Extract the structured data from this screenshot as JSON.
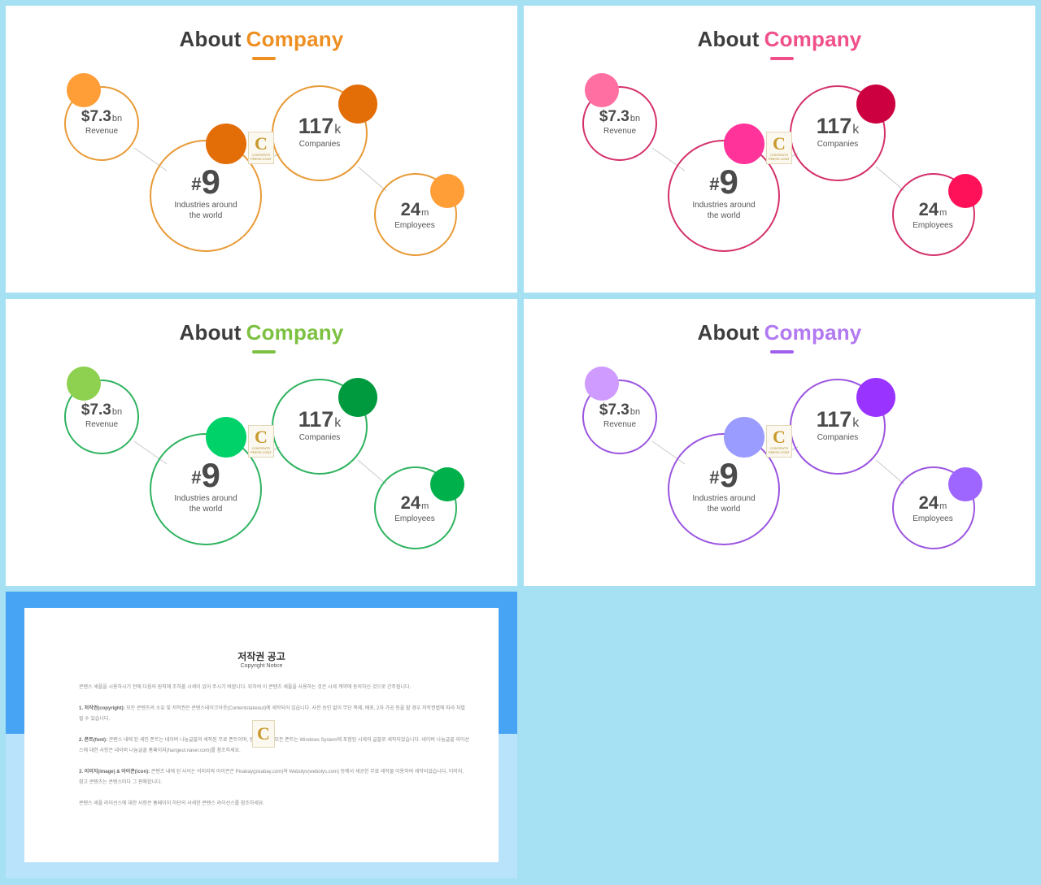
{
  "slides": [
    {
      "title_main": "About",
      "title_accent": "Company",
      "colors": {
        "accent": "#ee8f22",
        "ring": "#e89a36",
        "dot_small": "#ff9d37",
        "dot_large": "#e36d07",
        "underline": "#ee8f22",
        "link": "#c9c9c9"
      },
      "stats": {
        "revenue": {
          "value": "$7.3",
          "unit": "bn",
          "label": "Revenue"
        },
        "industries": {
          "prefix": "#",
          "value": "9",
          "label_line1": "Industries around",
          "label_line2": "the world"
        },
        "companies": {
          "value": "117",
          "unit": "k",
          "label": "Companies"
        },
        "employees": {
          "value": "24",
          "unit": "m",
          "label": "Employees"
        }
      },
      "logo": {
        "letter": "C",
        "text_line1": "CONTENTS",
        "text_line2": "PRESS CONT"
      }
    },
    {
      "title_main": "About",
      "title_accent": "Company",
      "colors": {
        "accent": "#f0508a",
        "ring": "#d4306c",
        "dot_small": "#ff6fa2",
        "dot_large": "#cc0040",
        "dot_mid": "#ff3399",
        "dot_emp": "#ff1159",
        "underline": "#f0508a",
        "link": "#c9c9c9"
      },
      "stats": {
        "revenue": {
          "value": "$7.3",
          "unit": "bn",
          "label": "Revenue"
        },
        "industries": {
          "prefix": "#",
          "value": "9",
          "label_line1": "Industries around",
          "label_line2": "the world"
        },
        "companies": {
          "value": "117",
          "unit": "k",
          "label": "Companies"
        },
        "employees": {
          "value": "24",
          "unit": "m",
          "label": "Employees"
        }
      },
      "logo": {
        "letter": "C",
        "text_line1": "CONTENTS",
        "text_line2": "PRESS CONT"
      }
    },
    {
      "title_main": "About",
      "title_accent": "Company",
      "colors": {
        "accent": "#7dc142",
        "ring": "#2fb35f",
        "dot_small": "#8ed04f",
        "dot_large": "#009a3e",
        "dot_mid": "#00d26a",
        "dot_emp": "#00b04a",
        "underline": "#7dc142",
        "link": "#c9c9c9"
      },
      "stats": {
        "revenue": {
          "value": "$7.3",
          "unit": "bn",
          "label": "Revenue"
        },
        "industries": {
          "prefix": "#",
          "value": "9",
          "label_line1": "Industries around",
          "label_line2": "the world"
        },
        "companies": {
          "value": "117",
          "unit": "k",
          "label": "Companies"
        },
        "employees": {
          "value": "24",
          "unit": "m",
          "label": "Employees"
        }
      },
      "logo": {
        "letter": "C",
        "text_line1": "CONTENTS",
        "text_line2": "PRESS CONT"
      }
    },
    {
      "title_main": "About",
      "title_accent": "Company",
      "colors": {
        "accent": "#b27af0",
        "ring": "#9b55e0",
        "dot_small": "#cf9bff",
        "dot_large": "#9933ff",
        "dot_mid": "#9a9cff",
        "dot_emp": "#9e66ff",
        "underline": "#a060ee",
        "link": "#c9c9c9"
      },
      "stats": {
        "revenue": {
          "value": "$7.3",
          "unit": "bn",
          "label": "Revenue"
        },
        "industries": {
          "prefix": "#",
          "value": "9",
          "label_line1": "Industries around",
          "label_line2": "the world"
        },
        "companies": {
          "value": "117",
          "unit": "k",
          "label": "Companies"
        },
        "employees": {
          "value": "24",
          "unit": "m",
          "label": "Employees"
        }
      },
      "logo": {
        "letter": "C",
        "text_line1": "CONTENTS",
        "text_line2": "PRESS CONT"
      }
    }
  ],
  "copyright": {
    "title": "저작권 공고",
    "subtitle": "Copyright Notice",
    "intro": "콘텐스 세플을 시용하시기 전에 다음의 원칙에 조하볼 시세이 있어 주시기 바랍니다. 위하여 이 콘텐츠 세플을 사용하는 것은 시세 계약에 동의하신 것으로 간주됩니다.",
    "p1_head": "1. 저작권(copyright):",
    "p1_body": "모든 콘텐츠의 소유 및 저작권은 콘텐스테이크아웃(Contentstakeout)에 세작되어 있습니다. 사전 승인 없이 무단 복제, 배포, 2차 가공 등을 할 경우 저작권법에 따라 처벌될 수 있습니다.",
    "p2_head": "2. 폰트(font):",
    "p2_body": "콘텐스 내에 된 세인 폰트는 네이버 나눔글꼴의 세작된 무료 폰트이며, 윈도우 외의 모든 폰트는 Windows System에 포함된 시세의 글꼴로 세작되었습니다. 네이버 나눔글꼴 라이선스에 대한 사항은 네이버 나눔글꼴 홈페이지(hangeul.naver.com)를 참조하세요.",
    "p3_head": "3. 이미지(image) & 아이콘(icon):",
    "p3_body": "콘텐츠 내에 된 사이는 이미지와 아이콘은 Pixabay(pixabay.com)와 Webolys(webolys.com) 등에서 세공한 무료 세작물 이용하여 세작되었습니다. 이미지, 참고 콘텐츠는 콘텐스마다 그 판매합니다.",
    "outro": "콘텐스 세플 라이선스에 대한 사항은 홈페이지 하단의 사세한 콘텐스 라이선스를 참조하세요."
  }
}
